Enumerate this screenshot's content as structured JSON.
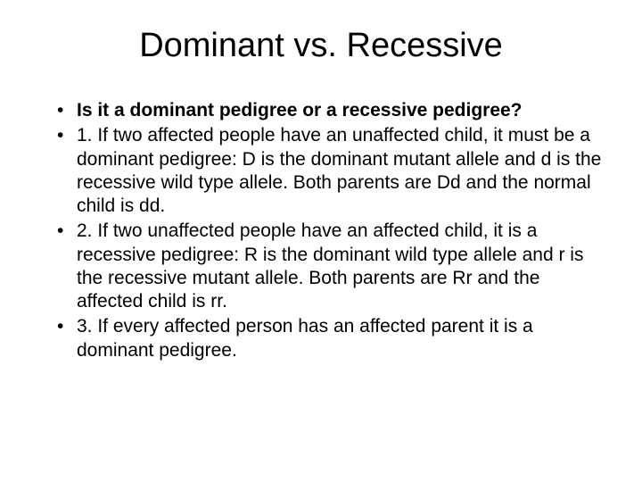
{
  "title_text": "Dominant vs. Recessive",
  "title_fontsize": 38,
  "title_color": "#000000",
  "body_fontsize": 21,
  "body_color": "#000000",
  "background_color": "#ffffff",
  "bullets": [
    {
      "text": "Is it a dominant pedigree or a recessive pedigree?",
      "bold": true
    },
    {
      "text": "1. If two affected people have an unaffected child, it must be a dominant pedigree: D is the dominant mutant allele and d is the recessive wild type allele. Both parents are Dd and the normal child is dd.",
      "bold": false
    },
    {
      "text": "2. If two unaffected people have an affected child, it is a recessive pedigree: R is the dominant wild type allele and r is the recessive mutant allele. Both parents are Rr and the affected child is rr.",
      "bold": false
    },
    {
      "text": "3. If every affected person has an affected parent it is a dominant pedigree.",
      "bold": false
    }
  ]
}
